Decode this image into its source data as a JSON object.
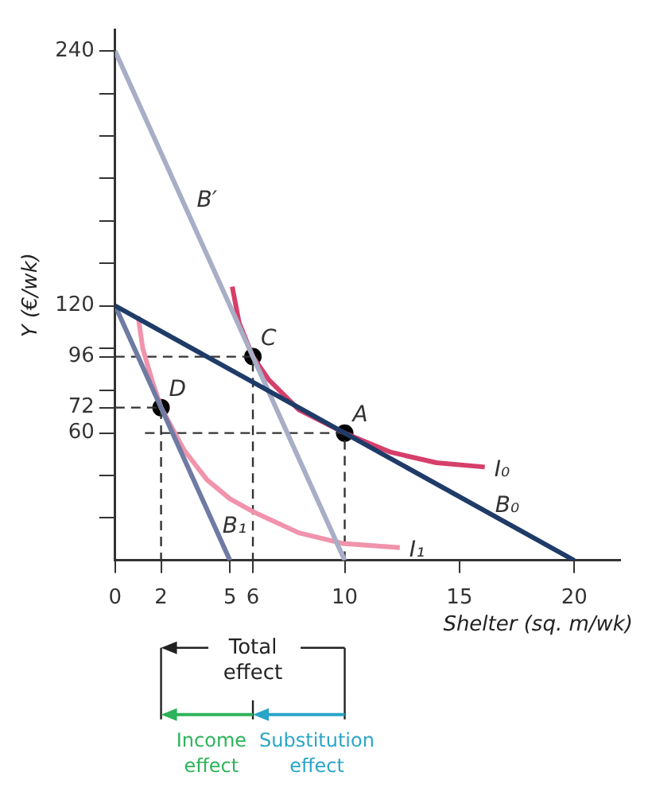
{
  "chart_data": {
    "type": "line",
    "xlabel": "Shelter (sq. m/wk)",
    "ylabel": "Y (€/wk)",
    "xlim": [
      0,
      22
    ],
    "ylim": [
      0,
      250
    ],
    "xticks": [
      0,
      2,
      5,
      6,
      10,
      15,
      20
    ],
    "yticks": [
      {
        "value": 20,
        "label": null
      },
      {
        "value": 40,
        "label": null
      },
      60,
      72,
      {
        "value": 80,
        "label": null
      },
      96,
      {
        "value": 100,
        "label": null
      },
      120,
      {
        "value": 140,
        "label": null
      },
      {
        "value": 160,
        "label": null
      },
      {
        "value": 180,
        "label": null
      },
      {
        "value": 200,
        "label": null
      },
      {
        "value": 220,
        "label": null
      },
      240
    ],
    "legend": false,
    "series": [
      {
        "name": "B₀",
        "color": "#1f3b68",
        "x": [
          0,
          20
        ],
        "values": [
          120,
          0
        ],
        "marker": "none"
      },
      {
        "name": "B′",
        "color": "#a7aec6",
        "x": [
          0,
          10
        ],
        "values": [
          240,
          0
        ],
        "marker": "none"
      },
      {
        "name": "B₁",
        "color": "#6f7ba3",
        "x": [
          0,
          5
        ],
        "values": [
          120,
          0
        ],
        "marker": "none"
      },
      {
        "name": "I₀",
        "color": "#d63f6a",
        "x": [
          5.1,
          5.4,
          6,
          6.7,
          8,
          10,
          12,
          14,
          16.1
        ],
        "values": [
          129,
          112,
          96,
          85,
          71,
          60,
          51,
          46,
          44
        ],
        "marker": "none"
      },
      {
        "name": "I₁",
        "color": "#f093ab",
        "x": [
          1,
          1.2,
          1.6,
          2,
          3,
          4,
          5,
          6,
          8,
          9.9,
          12.4
        ],
        "values": [
          115,
          100,
          85,
          72,
          52,
          38,
          29,
          23,
          13,
          8,
          6
        ],
        "marker": "none"
      },
      {
        "type": "line",
        "color": "#333333",
        "x": [
          0,
          6,
          6
        ],
        "values": [
          96,
          96,
          0
        ],
        "marker": "none",
        "line_style": "dashed"
      },
      {
        "type": "line",
        "color": "#333333",
        "x": [
          0,
          2,
          2
        ],
        "values": [
          72,
          72,
          0
        ],
        "marker": "none",
        "line_style": "dashed"
      },
      {
        "type": "line",
        "color": "#333333",
        "x": [
          1.3,
          10,
          10
        ],
        "values": [
          60,
          60,
          0
        ],
        "marker": "none",
        "line_style": "dashed"
      },
      {
        "type": "scatter",
        "color": "#000000",
        "x": [
          10,
          6,
          2
        ],
        "values": [
          60,
          96,
          72
        ],
        "marker": "circle"
      }
    ],
    "annotations": [
      {
        "text": "A",
        "x": 10,
        "y": 60
      },
      {
        "text": "C",
        "x": 6,
        "y": 96
      },
      {
        "text": "D",
        "x": 2,
        "y": 72
      },
      "Total effect",
      "Income effect",
      "Substitution effect"
    ]
  }
}
